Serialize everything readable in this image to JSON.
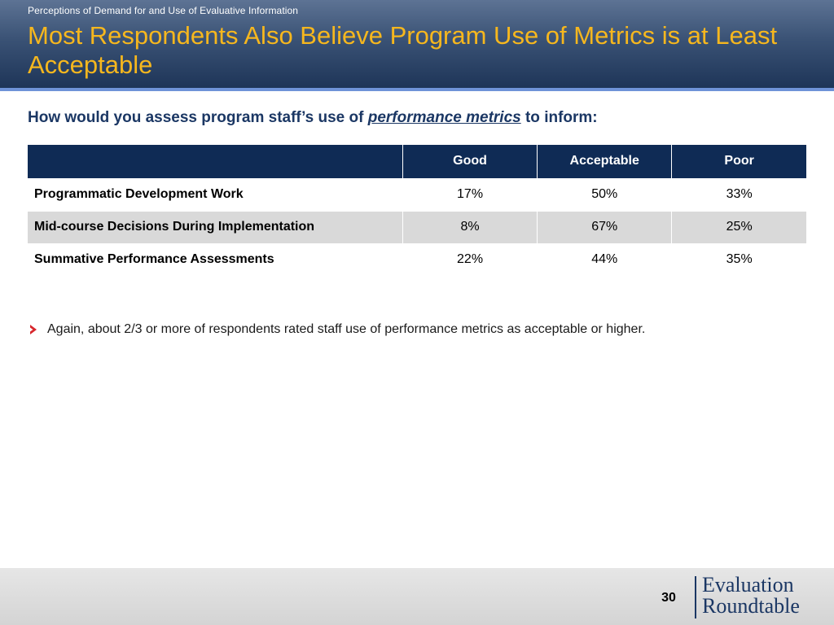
{
  "header": {
    "kicker": "Perceptions of Demand for and Use of Evaluative Information",
    "title": "Most Respondents Also Believe Program Use of Metrics is at Least Acceptable"
  },
  "question": {
    "before": "How would you assess program staff’s use of ",
    "emphasis": "performance metrics",
    "after": " to inform:"
  },
  "table": {
    "columns": [
      "",
      "Good",
      "Acceptable",
      "Poor"
    ],
    "rows": [
      {
        "label": "Programmatic Development Work",
        "good": "17%",
        "acceptable": "50%",
        "poor": "33%"
      },
      {
        "label": "Mid-course Decisions During Implementation",
        "good": "8%",
        "acceptable": "67%",
        "poor": "25%"
      },
      {
        "label": "Summative Performance Assessments",
        "good": "22%",
        "acceptable": "44%",
        "poor": "35%"
      }
    ]
  },
  "bullets": [
    "Again, about 2/3 or more of respondents rated staff use of performance metrics as acceptable or higher."
  ],
  "footer": {
    "page_number": "30",
    "logo_line1": "Evaluation",
    "logo_line2": "Roundtable"
  },
  "colors": {
    "title": "#f6b71e",
    "header_dark": "#1e3558",
    "table_header": "#0f2b55",
    "accent_rule": "#6f93d8",
    "bullet_arrow": "#d7262b"
  },
  "icons": {
    "bullet": "chevron-right-icon"
  }
}
